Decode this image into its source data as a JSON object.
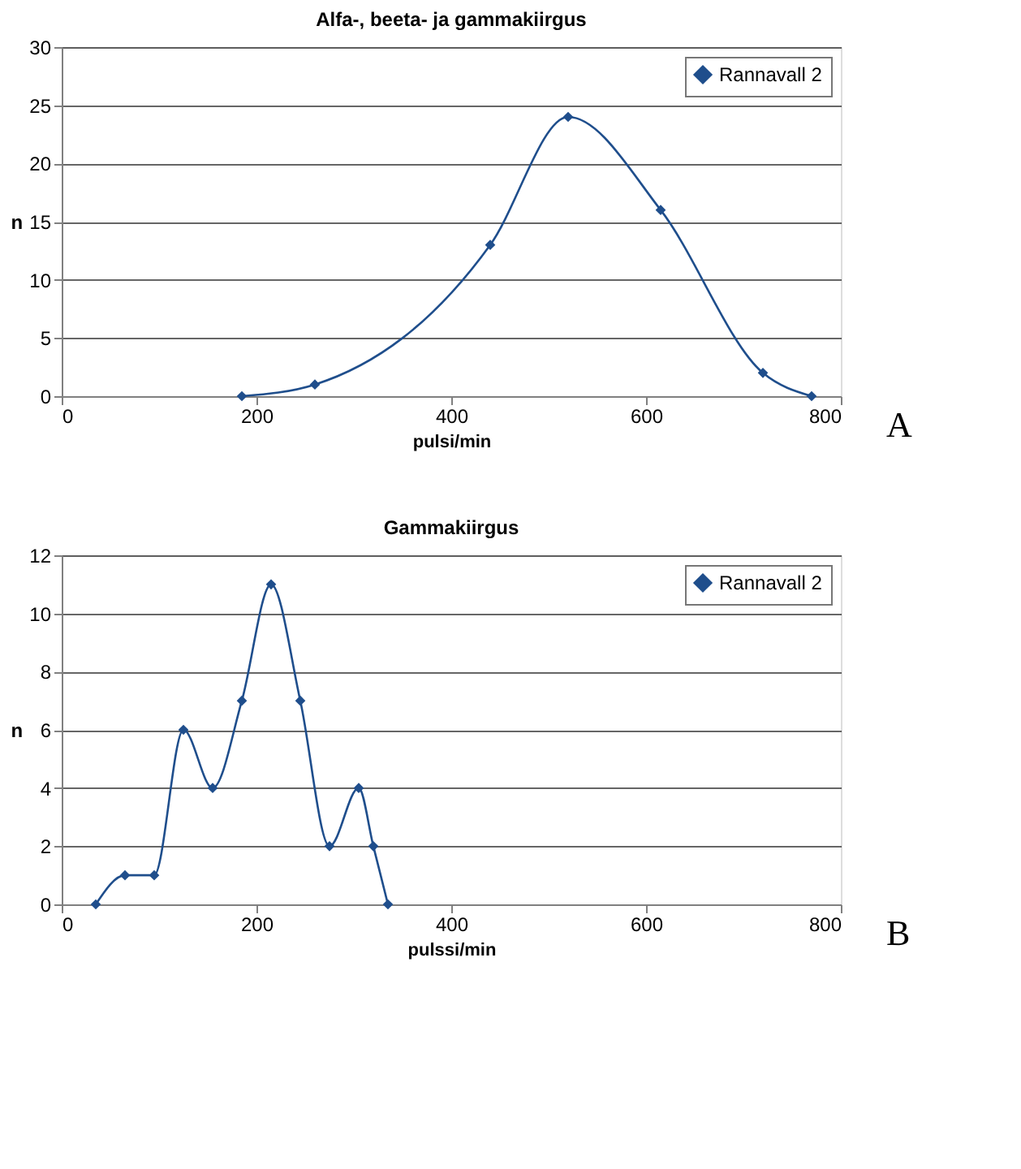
{
  "chart_data": [
    {
      "type": "line",
      "title": "Alfa-, beeta- ja gammakiirgus",
      "xlabel": "pulsi/min",
      "ylabel": "n",
      "x": [
        185,
        260,
        440,
        520,
        615,
        720,
        770
      ],
      "series": [
        {
          "name": "Rannavall 2",
          "color": "#1f4e8c",
          "values": [
            0,
            1,
            13,
            24,
            16,
            2,
            0
          ]
        }
      ],
      "xlim": [
        0,
        800
      ],
      "xticks": [
        0,
        200,
        400,
        600,
        800
      ],
      "ylim": [
        0,
        30
      ],
      "yticks": [
        0,
        5,
        10,
        15,
        20,
        25,
        30
      ],
      "grid": "y",
      "legend": "top right",
      "marker": "diamond",
      "line_style": "solid",
      "annotations": [
        "A"
      ]
    },
    {
      "type": "line",
      "title": "Gammakiirgus",
      "xlabel": "pulssi/min",
      "ylabel": "n",
      "x": [
        35,
        65,
        95,
        125,
        155,
        185,
        215,
        245,
        275,
        305,
        320,
        335
      ],
      "series": [
        {
          "name": "Rannavall 2",
          "color": "#1f4e8c",
          "values": [
            0,
            1,
            1,
            6,
            4,
            7,
            11,
            7,
            2,
            4,
            2,
            0
          ]
        }
      ],
      "xlim": [
        0,
        800
      ],
      "xticks": [
        0,
        200,
        400,
        600,
        800
      ],
      "ylim": [
        0,
        12
      ],
      "yticks": [
        0,
        2,
        4,
        6,
        8,
        10,
        12
      ],
      "grid": "y",
      "legend": "top right",
      "marker": "diamond",
      "line_style": "solid",
      "annotations": [
        "B"
      ]
    }
  ]
}
